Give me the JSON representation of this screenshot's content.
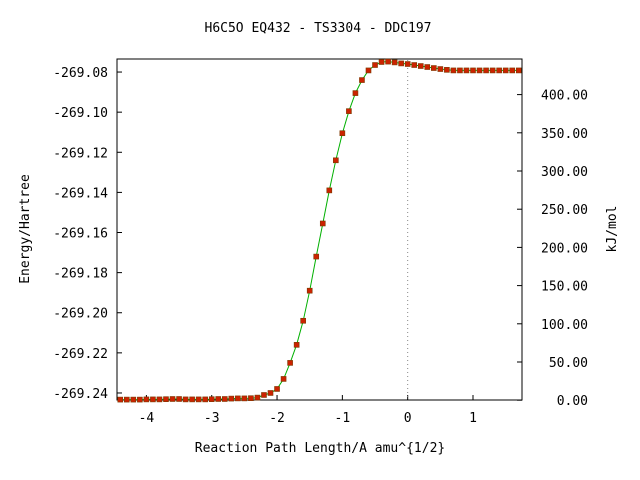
{
  "chart_data": {
    "type": "line",
    "title": "H6C5O   EQ432 - TS3304 - DDC197",
    "xlabel": "Reaction Path Length/A amu^{1/2}",
    "ylabel": "Energy/Hartree",
    "y2label": "kJ/mol",
    "xlim": [
      -4.45,
      1.75
    ],
    "ylim": [
      -269.2435,
      -269.0735
    ],
    "x_ticks": [
      -4,
      -3,
      -2,
      -1,
      0,
      1
    ],
    "x_tick_labels": [
      "-4",
      "-3",
      "-2",
      "-1",
      "0",
      "1"
    ],
    "y_ticks": [
      -269.08,
      -269.1,
      -269.12,
      -269.14,
      -269.16,
      -269.18,
      -269.2,
      -269.22,
      -269.24
    ],
    "y_tick_labels": [
      "-269.08",
      "-269.10",
      "-269.12",
      "-269.14",
      "-269.16",
      "-269.18",
      "-269.20",
      "-269.22",
      "-269.24"
    ],
    "y2_reference_energy": -269.2436,
    "y2_ticks": [
      0,
      50,
      100,
      150,
      200,
      250,
      300,
      350,
      400
    ],
    "y2_tick_labels": [
      "0.00",
      "50.00",
      "100.00",
      "150.00",
      "200.00",
      "250.00",
      "300.00",
      "350.00",
      "400.00"
    ],
    "ts_marker_x": 0,
    "grid": false,
    "colors": {
      "line": "#00b000",
      "marker": "#cc2200",
      "marker_edge": "#7a3a00",
      "ts_line": "#888888"
    },
    "series": [
      {
        "x": [
          -4.4,
          -4.3,
          -4.2,
          -4.1,
          -4.0,
          -3.9,
          -3.8,
          -3.7,
          -3.6,
          -3.5,
          -3.4,
          -3.3,
          -3.2,
          -3.1,
          -3.0,
          -2.9,
          -2.8,
          -2.7,
          -2.6,
          -2.5,
          -2.4,
          -2.3,
          -2.2,
          -2.1,
          -2.0,
          -1.9,
          -1.8,
          -1.7,
          -1.6,
          -1.5,
          -1.4,
          -1.3,
          -1.2,
          -1.1,
          -1.0,
          -0.9,
          -0.8,
          -0.7,
          -0.6,
          -0.5,
          -0.4,
          -0.3,
          -0.2,
          -0.1,
          0.0,
          0.1,
          0.2,
          0.3,
          0.4,
          0.5,
          0.6,
          0.7,
          0.8,
          0.9,
          1.0,
          1.1,
          1.2,
          1.3,
          1.4,
          1.5,
          1.6,
          1.7
        ],
        "y": [
          -269.2433,
          -269.2433,
          -269.2433,
          -269.2433,
          -269.2432,
          -269.2432,
          -269.2432,
          -269.2431,
          -269.243,
          -269.243,
          -269.2432,
          -269.2432,
          -269.2432,
          -269.2432,
          -269.2431,
          -269.243,
          -269.243,
          -269.2428,
          -269.2427,
          -269.2427,
          -269.2426,
          -269.2423,
          -269.241,
          -269.24,
          -269.238,
          -269.233,
          -269.225,
          -269.216,
          -269.204,
          -269.189,
          -269.172,
          -269.1555,
          -269.139,
          -269.124,
          -269.1105,
          -269.0995,
          -269.0905,
          -269.084,
          -269.0792,
          -269.0765,
          -269.075,
          -269.0748,
          -269.0752,
          -269.0757,
          -269.076,
          -269.0765,
          -269.077,
          -269.0775,
          -269.078,
          -269.0785,
          -269.0789,
          -269.0792,
          -269.0792,
          -269.0792,
          -269.0792,
          -269.0792,
          -269.0792,
          -269.0792,
          -269.0792,
          -269.0792,
          -269.0792,
          -269.0792
        ]
      }
    ]
  }
}
